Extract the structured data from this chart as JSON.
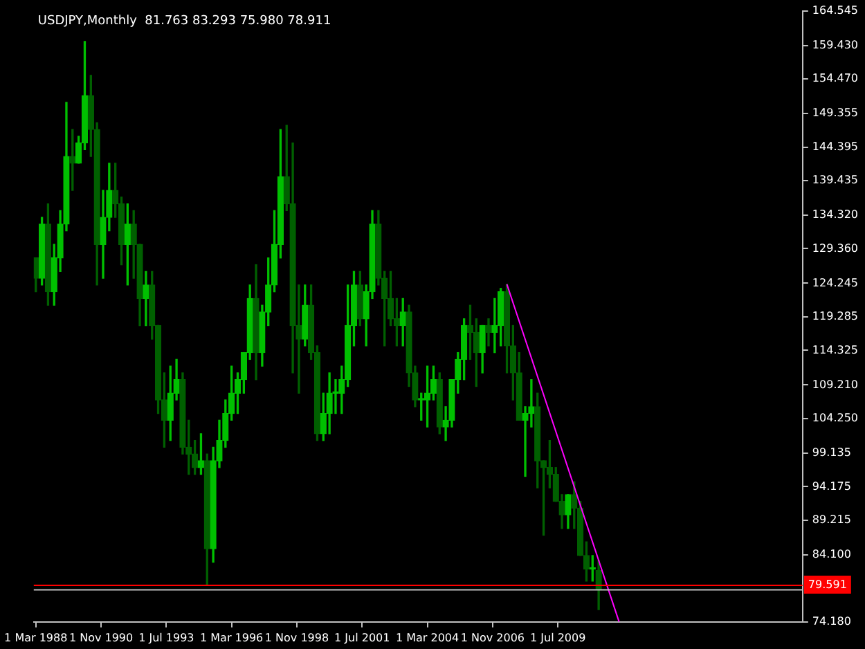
{
  "chart_data": {
    "type": "candlestick",
    "title": "USDJPY,Monthly  81.763 83.293 75.980 78.911",
    "colors": [
      "#006000",
      "#00c000",
      "#006000",
      "#00c000",
      "#00c000",
      "#00c000",
      "#006000",
      "#00c000",
      "#00c000",
      "#006000",
      "#006000",
      "#00c000",
      "#00c000",
      "#006000",
      "#006000",
      "#00c000",
      "#006000",
      "#006000",
      "#00c000",
      "#006000",
      "#006000",
      "#006000",
      "#00c000",
      "#00c000",
      "#006000",
      "#006000",
      "#006000",
      "#00c000",
      "#006000",
      "#00c000",
      "#00c000",
      "#00c000",
      "#00c000",
      "#00c000",
      "#00c000",
      "#00c000",
      "#006000",
      "#00c000",
      "#00c000",
      "#00c000",
      "#00c000",
      "#006000",
      "#006000",
      "#006000",
      "#00c000",
      "#006000",
      "#006000",
      "#00c000",
      "#00c000",
      "#00c000",
      "#00c000",
      "#00c000",
      "#00c000",
      "#006000",
      "#00c000",
      "#00c000",
      "#006000",
      "#006000",
      "#006000",
      "#006000",
      "#00c000",
      "#006000",
      "#006000",
      "#00c000",
      "#00c000",
      "#00c000",
      "#006000",
      "#00c000",
      "#00c000",
      "#00c000",
      "#00c000",
      "#006000",
      "#006000",
      "#00c000",
      "#006000",
      "#00c000",
      "#00c000",
      "#006000",
      "#006000",
      "#006000",
      "#00c000",
      "#00c000",
      "#006000",
      "#006000",
      "#006000",
      "#006000",
      "#006000",
      "#00c000",
      "#006000",
      "#006000",
      "#006000",
      "#00c000",
      "#006000"
    ],
    "x": [
      "1988-03",
      "1988-06",
      "1988-09",
      "1988-12",
      "1989-03",
      "1989-06",
      "1989-09",
      "1989-12",
      "1990-03",
      "1990-06",
      "1990-09",
      "1990-12",
      "1991-03",
      "1991-06",
      "1991-09",
      "1991-12",
      "1992-03",
      "1992-06",
      "1992-09",
      "1992-12",
      "1993-03",
      "1993-06",
      "1993-09",
      "1993-12",
      "1994-03",
      "1994-06",
      "1994-09",
      "1994-12",
      "1995-03",
      "1995-06",
      "1995-09",
      "1995-12",
      "1996-03",
      "1996-06",
      "1996-09",
      "1996-12",
      "1997-03",
      "1997-06",
      "1997-09",
      "1997-12",
      "1998-03",
      "1998-06",
      "1998-09",
      "1998-12",
      "1999-03",
      "1999-06",
      "1999-09",
      "1999-12",
      "2000-03",
      "2000-06",
      "2000-09",
      "2000-12",
      "2001-03",
      "2001-06",
      "2001-09",
      "2001-12",
      "2002-03",
      "2002-06",
      "2002-09",
      "2002-12",
      "2003-03",
      "2003-06",
      "2003-09",
      "2003-12",
      "2004-03",
      "2004-06",
      "2004-09",
      "2004-12",
      "2005-03",
      "2005-06",
      "2005-09",
      "2005-12",
      "2006-03",
      "2006-06",
      "2006-09",
      "2006-12",
      "2007-03",
      "2007-06",
      "2007-09",
      "2007-12",
      "2008-03",
      "2008-06",
      "2008-09",
      "2008-12",
      "2009-03",
      "2009-06",
      "2009-09",
      "2009-12",
      "2010-03",
      "2010-06",
      "2010-09",
      "2010-12",
      "2011-03"
    ],
    "ohlc": [
      [
        128,
        128,
        123,
        125
      ],
      [
        125,
        134,
        124,
        133
      ],
      [
        133,
        136,
        121,
        123
      ],
      [
        123,
        130,
        121,
        128
      ],
      [
        128,
        135,
        126,
        133
      ],
      [
        133,
        151,
        132,
        143
      ],
      [
        143,
        147,
        138,
        142
      ],
      [
        142,
        146,
        142,
        145
      ],
      [
        145,
        160,
        144,
        152
      ],
      [
        152,
        155,
        143,
        147
      ],
      [
        147,
        148,
        124,
        130
      ],
      [
        130,
        138,
        125,
        134
      ],
      [
        134,
        142,
        132,
        138
      ],
      [
        138,
        142,
        134,
        136
      ],
      [
        136,
        137,
        127,
        130
      ],
      [
        130,
        136,
        124,
        133
      ],
      [
        133,
        135,
        125,
        130
      ],
      [
        130,
        130,
        118,
        122
      ],
      [
        122,
        126,
        118,
        124
      ],
      [
        124,
        126,
        116,
        118
      ],
      [
        118,
        118,
        105,
        107
      ],
      [
        107,
        111,
        100,
        104
      ],
      [
        104,
        112,
        101,
        108
      ],
      [
        108,
        113,
        107,
        110
      ],
      [
        110,
        111,
        99,
        100
      ],
      [
        100,
        104,
        96,
        99
      ],
      [
        99,
        101,
        96,
        97
      ],
      [
        97,
        102,
        96,
        98
      ],
      [
        98,
        99,
        79.75,
        85
      ],
      [
        85,
        100,
        83,
        98
      ],
      [
        98,
        104,
        97,
        101
      ],
      [
        101,
        107,
        100,
        105
      ],
      [
        105,
        112,
        104,
        108
      ],
      [
        108,
        111,
        105,
        110
      ],
      [
        110,
        114,
        108,
        114
      ],
      [
        114,
        124,
        113,
        122
      ],
      [
        122,
        127,
        110,
        114
      ],
      [
        114,
        121,
        112,
        120
      ],
      [
        120,
        128,
        118,
        124
      ],
      [
        124,
        135,
        123,
        130
      ],
      [
        130,
        147,
        128,
        140
      ],
      [
        140,
        147.6,
        135,
        136
      ],
      [
        136,
        145,
        111,
        118
      ],
      [
        118,
        124,
        108,
        116
      ],
      [
        116,
        124,
        115,
        121
      ],
      [
        121,
        124,
        113,
        114
      ],
      [
        114,
        115,
        101,
        102
      ],
      [
        102,
        108,
        101,
        105
      ],
      [
        105,
        111,
        102,
        108
      ],
      [
        108,
        110,
        105,
        108
      ],
      [
        108,
        112,
        105,
        110
      ],
      [
        110,
        124,
        109,
        118
      ],
      [
        118,
        126,
        115,
        124
      ],
      [
        124,
        126,
        118,
        119
      ],
      [
        119,
        124,
        115,
        123
      ],
      [
        123,
        135,
        122,
        133
      ],
      [
        133,
        135,
        124,
        125
      ],
      [
        125,
        126,
        115,
        122
      ],
      [
        122,
        126,
        118,
        119
      ],
      [
        119,
        122,
        115,
        118
      ],
      [
        118,
        122,
        115,
        120
      ],
      [
        120,
        121,
        109,
        111
      ],
      [
        111,
        112,
        106,
        107
      ],
      [
        107,
        108,
        104,
        107
      ],
      [
        107,
        112,
        103,
        108
      ],
      [
        108,
        112,
        107,
        110
      ],
      [
        110,
        111,
        102,
        103
      ],
      [
        103,
        106,
        101,
        104
      ],
      [
        104,
        110,
        103,
        110
      ],
      [
        110,
        114,
        108,
        113
      ],
      [
        113,
        119,
        110,
        118
      ],
      [
        118,
        121,
        113,
        117
      ],
      [
        117,
        119,
        109,
        114
      ],
      [
        114,
        118,
        111,
        118
      ],
      [
        118,
        119,
        115,
        117
      ],
      [
        117,
        122,
        114,
        118
      ],
      [
        118,
        123.5,
        115,
        123
      ],
      [
        123,
        124.1,
        111,
        115
      ],
      [
        115,
        118,
        107,
        111
      ],
      [
        111,
        114,
        104,
        104
      ],
      [
        104,
        106,
        95.7,
        105
      ],
      [
        105,
        110,
        103,
        106
      ],
      [
        106,
        108,
        94,
        98
      ],
      [
        98,
        98,
        87,
        97
      ],
      [
        97,
        101,
        94,
        96
      ],
      [
        96,
        97,
        92,
        92
      ],
      [
        92,
        93,
        88,
        90
      ],
      [
        90,
        93,
        88,
        93
      ],
      [
        93,
        94.9,
        88,
        91
      ],
      [
        91,
        92,
        84,
        84
      ],
      [
        84,
        86,
        80.2,
        82
      ],
      [
        82,
        84,
        80.2,
        82
      ],
      [
        81.763,
        83.293,
        75.98,
        78.911
      ]
    ],
    "series": [
      {
        "type": "line",
        "x": [
          "2007-06",
          "2012-01"
        ],
        "values": [
          124.1,
          74.2
        ],
        "color": "#ff00ff"
      }
    ],
    "xlim": [
      "1988-02",
      "2019-07"
    ],
    "xticks": [
      {
        "value": "1988-03",
        "label": "1 Mar 1988"
      },
      {
        "value": "1990-11",
        "label": "1 Nov 1990"
      },
      {
        "value": "1993-07",
        "label": "1 Jul 1993"
      },
      {
        "value": "1996-03",
        "label": "1 Mar 1996"
      },
      {
        "value": "1998-11",
        "label": "1 Nov 1998"
      },
      {
        "value": "2001-07",
        "label": "1 Jul 2001"
      },
      {
        "value": "2004-03",
        "label": "1 Mar 2004"
      },
      {
        "value": "2006-11",
        "label": "1 Nov 2006"
      },
      {
        "value": "2009-07",
        "label": "1 Jul 2009"
      }
    ],
    "ylim": [
      74.18,
      164.545
    ],
    "yticks": [
      164.545,
      {
        "value": 159.43,
        "label": "159.430"
      },
      {
        "value": 154.47,
        "label": "154.470"
      },
      149.355,
      144.395,
      139.435,
      {
        "value": 134.32,
        "label": "134.320"
      },
      {
        "value": 129.36,
        "label": "129.360"
      },
      124.245,
      119.285,
      114.325,
      {
        "value": 109.21,
        "label": "109.210"
      },
      {
        "value": 104.25,
        "label": "104.250"
      },
      99.135,
      94.175,
      89.215,
      {
        "value": 84.1,
        "label": "84.100"
      },
      {
        "value": 74.18,
        "label": "74.180"
      }
    ],
    "ref_lines": [
      {
        "axis": "y",
        "value": 79.591,
        "label": "79.591",
        "color": "#ff0000"
      },
      {
        "axis": "y",
        "value": 78.911,
        "color": "#c0c0c0"
      }
    ],
    "grid": false,
    "legend": false
  }
}
